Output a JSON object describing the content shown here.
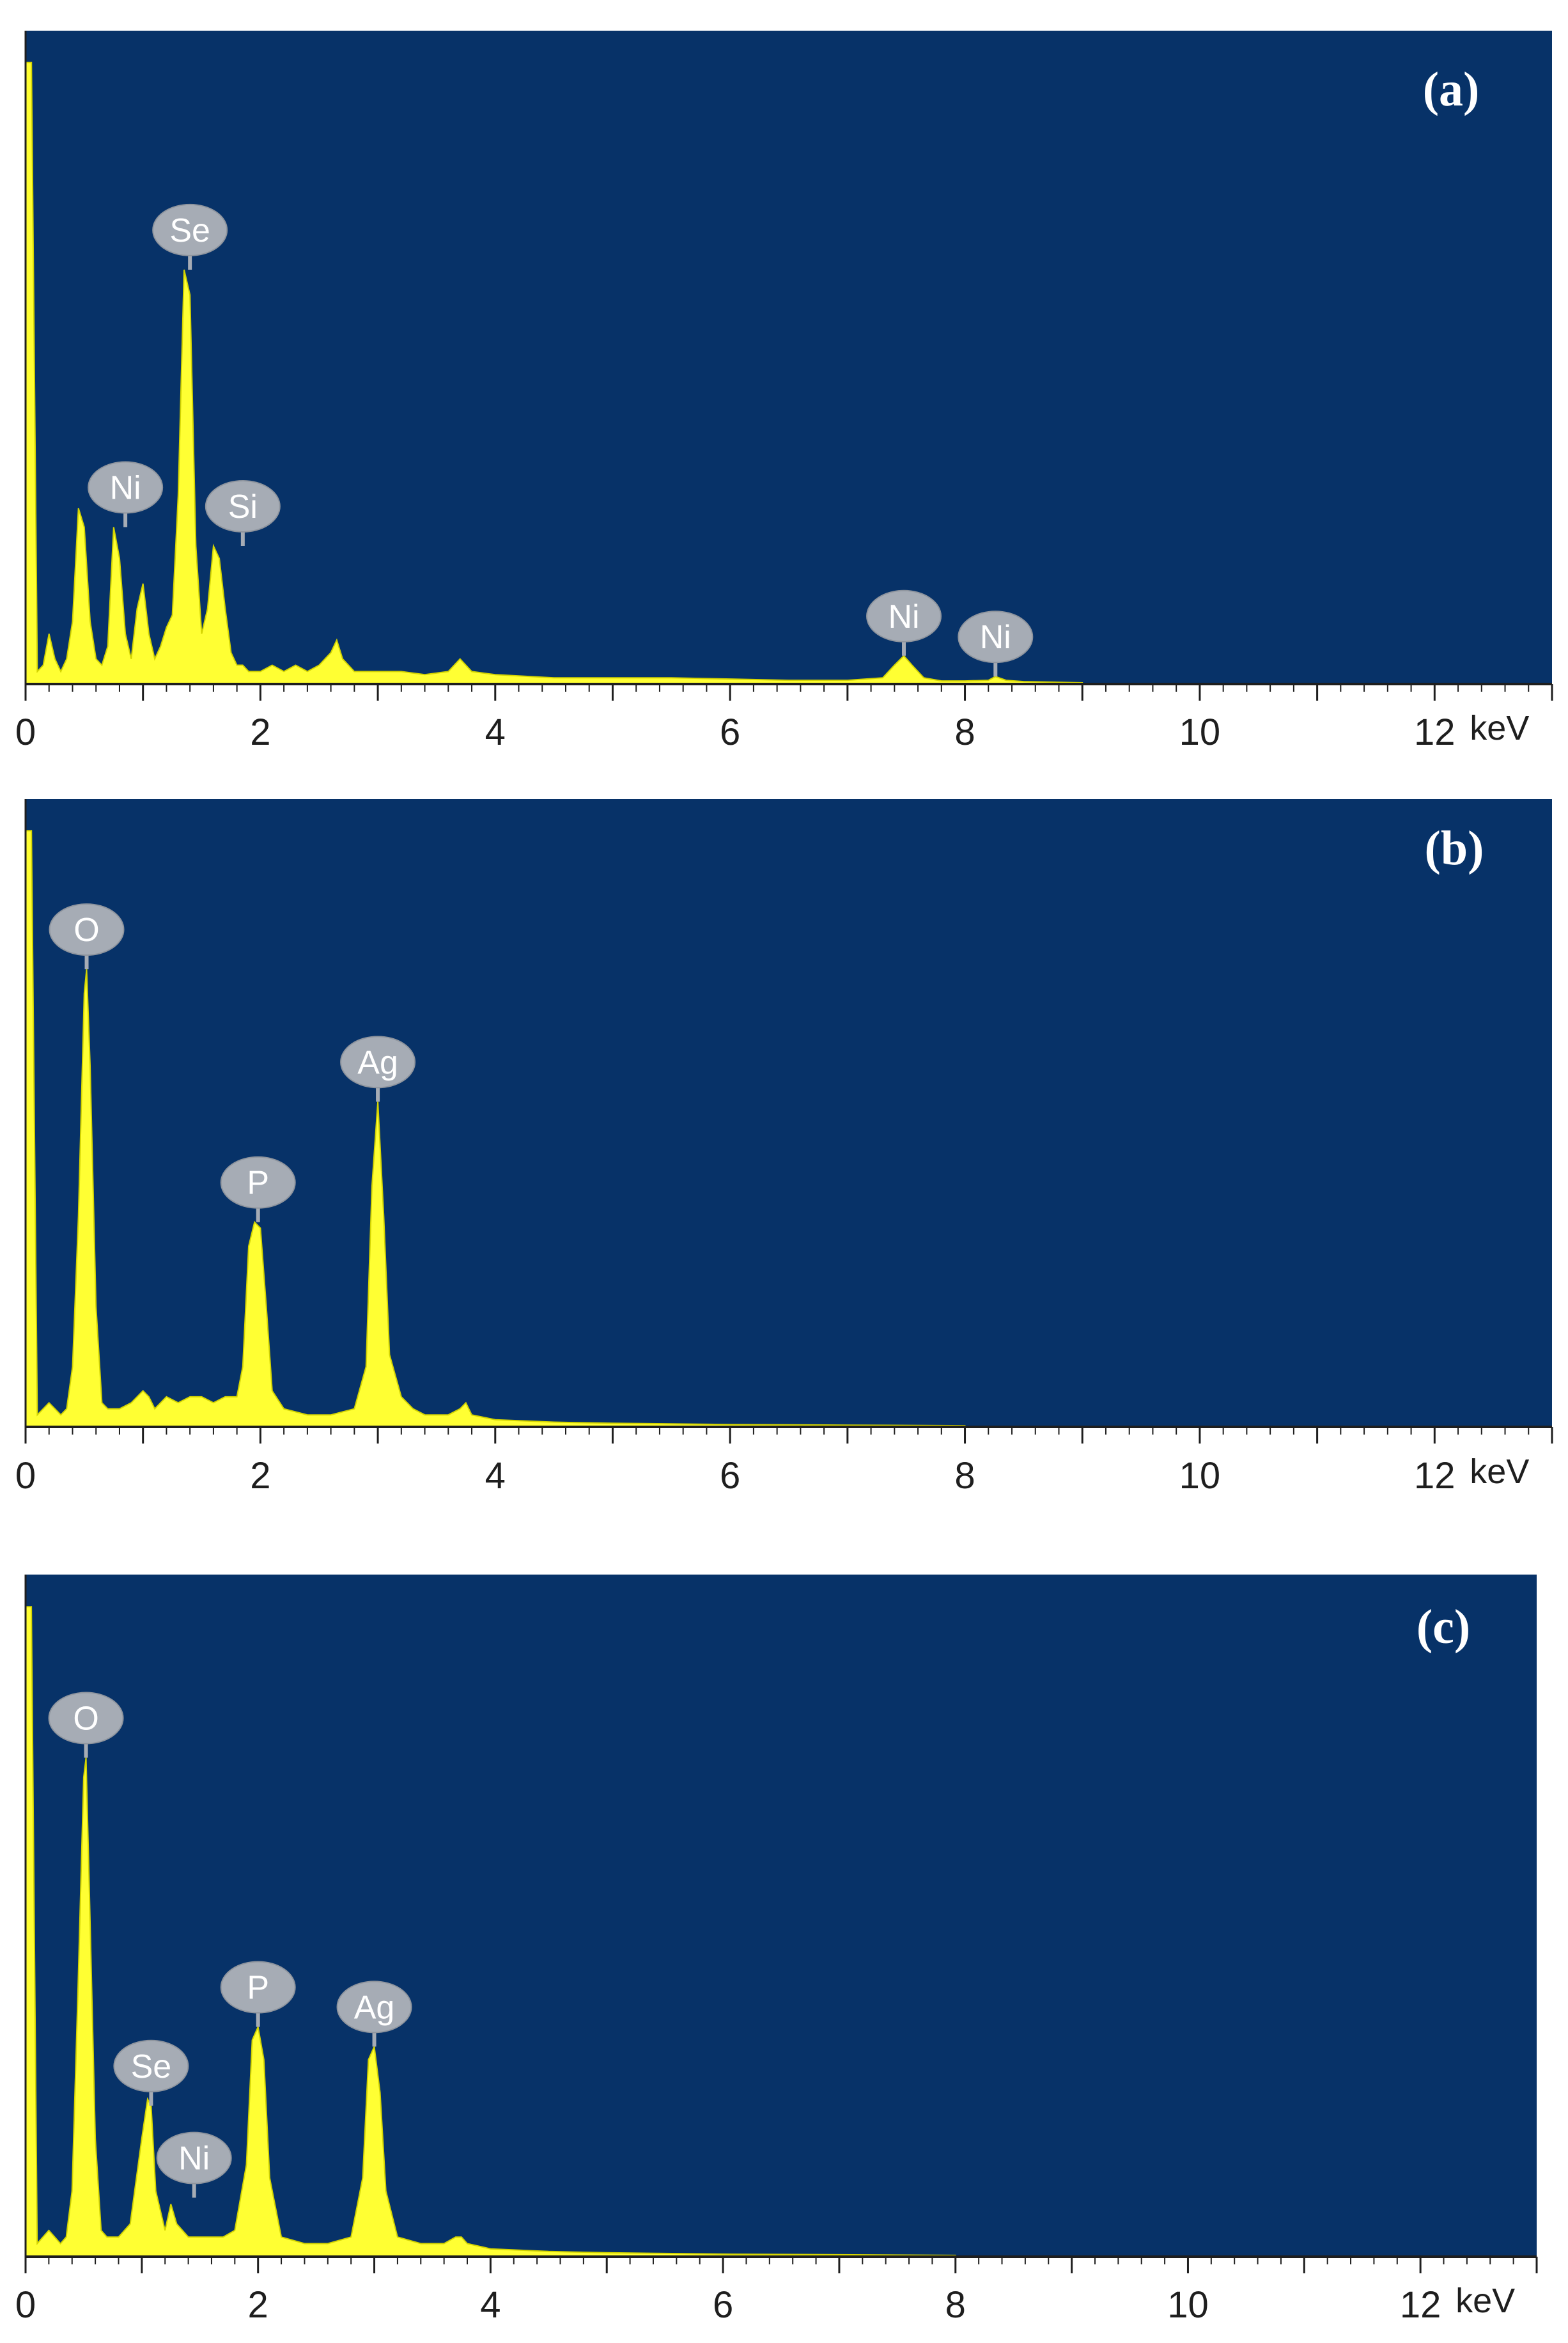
{
  "figure_title": "",
  "colors": {
    "plot_background": "#073268",
    "spectrum": "#ffff33",
    "spectrum_edge": "#d4d400",
    "peak_label_fill": "#a6acb5",
    "peak_label_text": "#ffffff",
    "axis": "#1e1e1e",
    "panel_label": "#ffffff"
  },
  "chart_data": [
    {
      "type": "area",
      "panel_label": "(a)",
      "xlabel": "keV",
      "ylabel": "",
      "xlim": [
        0,
        13
      ],
      "ylim": [
        0,
        100
      ],
      "xticks": [
        0,
        2,
        4,
        6,
        8,
        10,
        12
      ],
      "grid": false,
      "legend": "none",
      "spectrum": {
        "x": [
          0.0,
          0.05,
          0.1,
          0.15,
          0.2,
          0.25,
          0.3,
          0.35,
          0.4,
          0.45,
          0.5,
          0.55,
          0.6,
          0.65,
          0.7,
          0.75,
          0.8,
          0.85,
          0.9,
          0.95,
          1.0,
          1.05,
          1.1,
          1.15,
          1.2,
          1.25,
          1.3,
          1.35,
          1.4,
          1.45,
          1.5,
          1.55,
          1.6,
          1.65,
          1.7,
          1.75,
          1.8,
          1.85,
          1.9,
          2.0,
          2.1,
          2.2,
          2.3,
          2.4,
          2.5,
          2.6,
          2.65,
          2.7,
          2.8,
          3.0,
          3.2,
          3.4,
          3.6,
          3.7,
          3.8,
          4.0,
          4.5,
          5.0,
          5.5,
          6.0,
          6.5,
          7.0,
          7.3,
          7.4,
          7.48,
          7.55,
          7.65,
          7.8,
          8.0,
          8.2,
          8.26,
          8.35,
          8.5,
          9.0
        ],
        "y": [
          99,
          99,
          2,
          3,
          8,
          4,
          2,
          4,
          10,
          28,
          25,
          10,
          4,
          3,
          6,
          25,
          20,
          8,
          4,
          12,
          16,
          8,
          4,
          6,
          9,
          11,
          30,
          66,
          62,
          22,
          8,
          12,
          22,
          20,
          12,
          5,
          3,
          3,
          2,
          2,
          3,
          2,
          3,
          2,
          3,
          5,
          7,
          4,
          2,
          2,
          2,
          1.5,
          2,
          4,
          2,
          1.5,
          1,
          1,
          1,
          0.8,
          0.6,
          0.6,
          1,
          3,
          4.5,
          3,
          1,
          0.5,
          0.5,
          0.6,
          1.2,
          0.6,
          0.4,
          0.2
        ]
      },
      "peak_labels": [
        {
          "text": "Se",
          "x": 1.4,
          "y": 66
        },
        {
          "text": "Ni",
          "x": 0.85,
          "y": 25
        },
        {
          "text": "Si",
          "x": 1.85,
          "y": 22
        },
        {
          "text": "Ni",
          "x": 7.48,
          "y": 4.5
        },
        {
          "text": "Ni",
          "x": 8.26,
          "y": 1.2
        }
      ]
    },
    {
      "type": "area",
      "panel_label": "(b)",
      "xlabel": "keV",
      "ylabel": "",
      "xlim": [
        0,
        13
      ],
      "ylim": [
        0,
        100
      ],
      "xticks": [
        0,
        2,
        4,
        6,
        8,
        10,
        12
      ],
      "grid": false,
      "legend": "none",
      "spectrum": {
        "x": [
          0.0,
          0.05,
          0.1,
          0.15,
          0.2,
          0.25,
          0.3,
          0.35,
          0.4,
          0.45,
          0.5,
          0.52,
          0.55,
          0.6,
          0.65,
          0.7,
          0.8,
          0.9,
          1.0,
          1.05,
          1.1,
          1.2,
          1.3,
          1.4,
          1.5,
          1.6,
          1.7,
          1.8,
          1.85,
          1.9,
          1.95,
          2.0,
          2.05,
          2.1,
          2.2,
          2.4,
          2.6,
          2.8,
          2.9,
          2.95,
          3.0,
          3.05,
          3.1,
          3.2,
          3.3,
          3.4,
          3.5,
          3.6,
          3.7,
          3.75,
          3.8,
          4.0,
          4.5,
          5.0,
          5.5,
          6.0,
          7.0,
          8.0
        ],
        "y": [
          99,
          99,
          2,
          3,
          4,
          3,
          2,
          3,
          10,
          35,
          72,
          76,
          60,
          20,
          4,
          3,
          3,
          4,
          6,
          5,
          3,
          5,
          4,
          5,
          5,
          4,
          5,
          5,
          10,
          30,
          34,
          33,
          20,
          6,
          3,
          2,
          2,
          3,
          10,
          40,
          54,
          35,
          12,
          5,
          3,
          2,
          2,
          2,
          3,
          4,
          2,
          1.2,
          0.8,
          0.6,
          0.5,
          0.4,
          0.3,
          0.2
        ]
      },
      "peak_labels": [
        {
          "text": "O",
          "x": 0.52,
          "y": 76
        },
        {
          "text": "P",
          "x": 1.98,
          "y": 34
        },
        {
          "text": "Ag",
          "x": 3.0,
          "y": 54
        }
      ]
    },
    {
      "type": "area",
      "panel_label": "(c)",
      "xlabel": "keV",
      "ylabel": "",
      "xlim": [
        0,
        13
      ],
      "ylim": [
        0,
        100
      ],
      "xticks": [
        0,
        2,
        4,
        6,
        8,
        10,
        12
      ],
      "grid": false,
      "legend": "none",
      "spectrum": {
        "x": [
          0.0,
          0.05,
          0.1,
          0.15,
          0.2,
          0.25,
          0.3,
          0.35,
          0.4,
          0.45,
          0.5,
          0.52,
          0.55,
          0.6,
          0.65,
          0.7,
          0.8,
          0.9,
          1.0,
          1.05,
          1.08,
          1.12,
          1.2,
          1.25,
          1.3,
          1.4,
          1.5,
          1.6,
          1.7,
          1.8,
          1.9,
          1.95,
          2.0,
          2.05,
          2.1,
          2.2,
          2.4,
          2.6,
          2.8,
          2.9,
          2.95,
          3.0,
          3.05,
          3.1,
          3.2,
          3.4,
          3.6,
          3.7,
          3.75,
          3.8,
          4.0,
          4.5,
          5.0,
          5.5,
          6.0,
          7.0,
          8.0
        ],
        "y": [
          99,
          99,
          2,
          3,
          4,
          3,
          2,
          3,
          10,
          40,
          73,
          76,
          55,
          18,
          4,
          3,
          3,
          5,
          18,
          24,
          23,
          10,
          4,
          8,
          5,
          3,
          3,
          3,
          3,
          4,
          14,
          33,
          35,
          30,
          12,
          3,
          2,
          2,
          3,
          12,
          30,
          32,
          25,
          10,
          3,
          2,
          2,
          3,
          3,
          2,
          1.2,
          0.8,
          0.6,
          0.5,
          0.4,
          0.3,
          0.2
        ]
      },
      "peak_labels": [
        {
          "text": "O",
          "x": 0.52,
          "y": 76
        },
        {
          "text": "Se",
          "x": 1.08,
          "y": 23
        },
        {
          "text": "Ni",
          "x": 1.45,
          "y": 9
        },
        {
          "text": "P",
          "x": 2.0,
          "y": 35
        },
        {
          "text": "Ag",
          "x": 3.0,
          "y": 32
        }
      ]
    }
  ]
}
